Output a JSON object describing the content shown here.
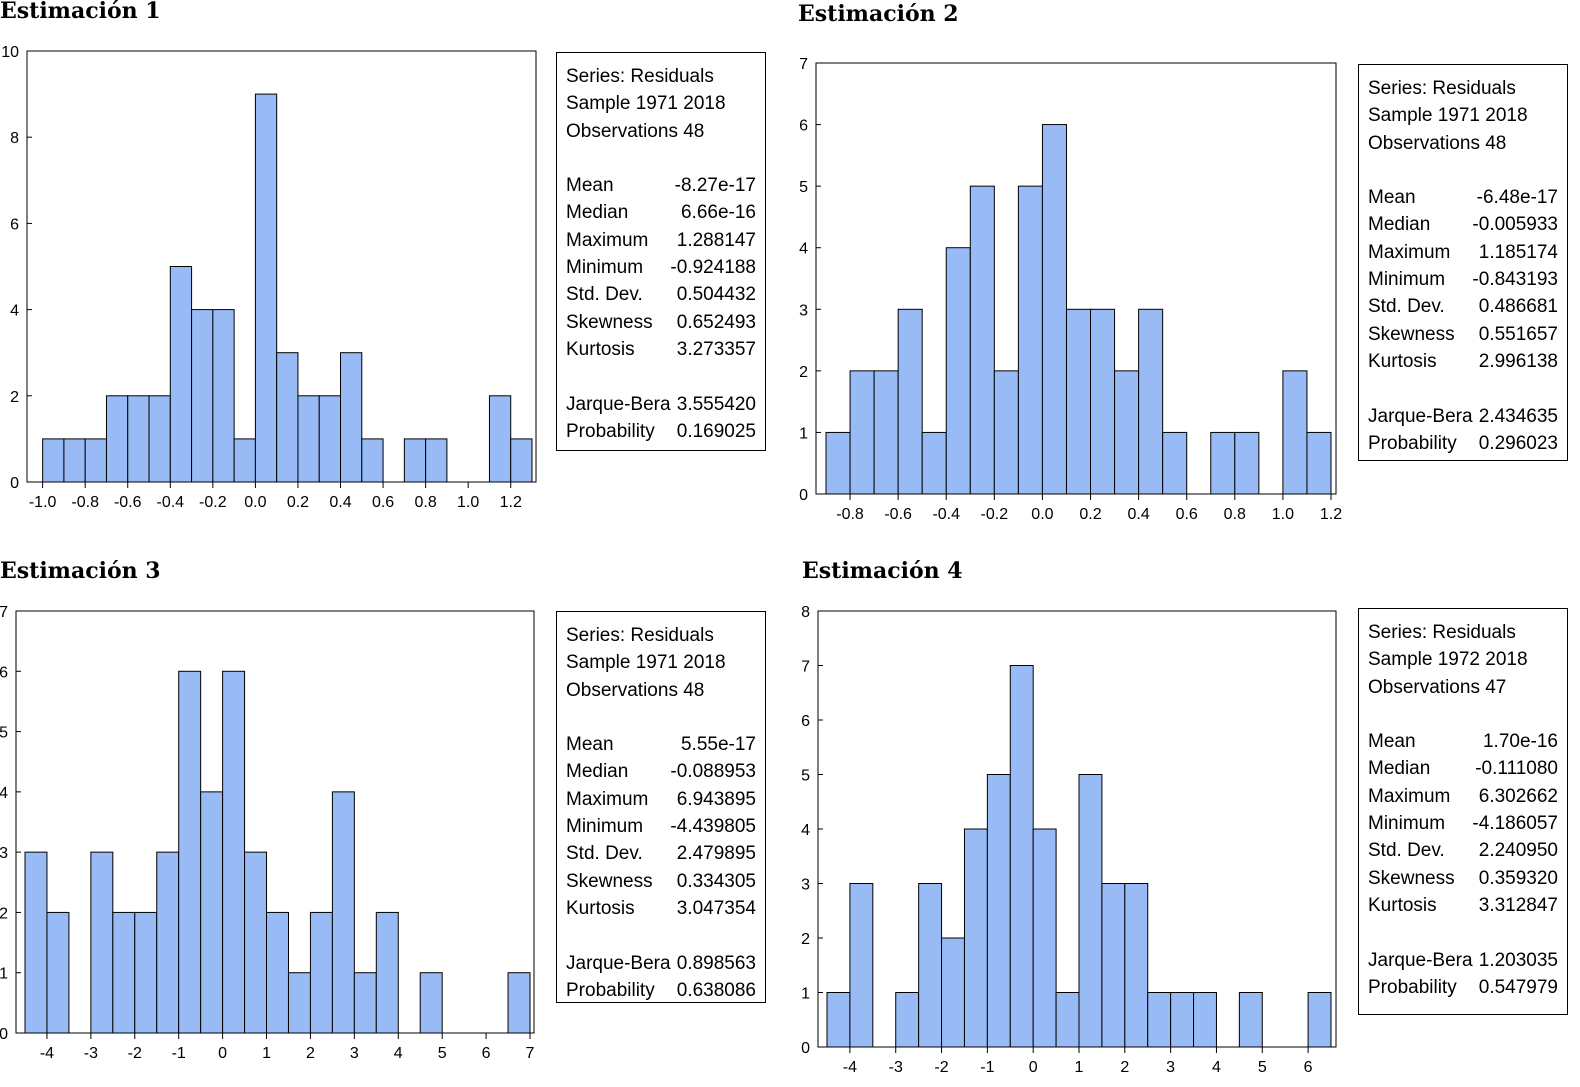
{
  "panels": [
    {
      "title": "Estimación 1",
      "stats": {
        "series": "Series: Residuals",
        "sample": "Sample 1971 2018",
        "observations": "Observations 48",
        "rows1": [
          {
            "label": "Mean",
            "value": "-8.27e-17"
          },
          {
            "label": "Median",
            "value": "6.66e-16"
          },
          {
            "label": "Maximum",
            "value": "1.288147"
          },
          {
            "label": "Minimum",
            "value": "-0.924188"
          },
          {
            "label": "Std. Dev.",
            "value": "0.504432"
          },
          {
            "label": "Skewness",
            "value": "0.652493"
          },
          {
            "label": "Kurtosis",
            "value": "3.273357"
          }
        ],
        "rows2": [
          {
            "label": "Jarque-Bera",
            "value": "3.555420"
          },
          {
            "label": "Probability",
            "value": "0.169025"
          }
        ]
      }
    },
    {
      "title": "Estimación 2",
      "stats": {
        "series": "Series: Residuals",
        "sample": "Sample 1971 2018",
        "observations": "Observations 48",
        "rows1": [
          {
            "label": "Mean",
            "value": "-6.48e-17"
          },
          {
            "label": "Median",
            "value": "-0.005933"
          },
          {
            "label": "Maximum",
            "value": "1.185174"
          },
          {
            "label": "Minimum",
            "value": "-0.843193"
          },
          {
            "label": "Std. Dev.",
            "value": "0.486681"
          },
          {
            "label": "Skewness",
            "value": "0.551657"
          },
          {
            "label": "Kurtosis",
            "value": "2.996138"
          }
        ],
        "rows2": [
          {
            "label": "Jarque-Bera",
            "value": "2.434635"
          },
          {
            "label": "Probability",
            "value": "0.296023"
          }
        ]
      }
    },
    {
      "title": "Estimación 3",
      "stats": {
        "series": "Series: Residuals",
        "sample": "Sample 1971 2018",
        "observations": "Observations 48",
        "rows1": [
          {
            "label": "Mean",
            "value": "5.55e-17"
          },
          {
            "label": "Median",
            "value": "-0.088953"
          },
          {
            "label": "Maximum",
            "value": "6.943895"
          },
          {
            "label": "Minimum",
            "value": "-4.439805"
          },
          {
            "label": "Std. Dev.",
            "value": "2.479895"
          },
          {
            "label": "Skewness",
            "value": "0.334305"
          },
          {
            "label": "Kurtosis",
            "value": "3.047354"
          }
        ],
        "rows2": [
          {
            "label": "Jarque-Bera",
            "value": "0.898563"
          },
          {
            "label": "Probability",
            "value": "0.638086"
          }
        ]
      }
    },
    {
      "title": "Estimación 4",
      "stats": {
        "series": "Series: Residuals",
        "sample": "Sample 1972 2018",
        "observations": "Observations 47",
        "rows1": [
          {
            "label": "Mean",
            "value": "1.70e-16"
          },
          {
            "label": "Median",
            "value": "-0.111080"
          },
          {
            "label": "Maximum",
            "value": "6.302662"
          },
          {
            "label": "Minimum",
            "value": "-4.186057"
          },
          {
            "label": "Std. Dev.",
            "value": "2.240950"
          },
          {
            "label": "Skewness",
            "value": "0.359320"
          },
          {
            "label": "Kurtosis",
            "value": "3.312847"
          }
        ],
        "rows2": [
          {
            "label": "Jarque-Bera",
            "value": "1.203035"
          },
          {
            "label": "Probability",
            "value": "0.547979"
          }
        ]
      }
    }
  ],
  "chart_data": [
    {
      "type": "bar",
      "bar_color": "#99bbf5",
      "edge_color": "#000000",
      "grid": false,
      "xlim": [
        -1.05,
        1.3
      ],
      "ylim": [
        0,
        10
      ],
      "xticks": [
        -1.0,
        -0.8,
        -0.6,
        -0.4,
        -0.2,
        0.0,
        0.2,
        0.4,
        0.6,
        0.8,
        1.0,
        1.2
      ],
      "xtick_labels": [
        "-1.0",
        "-0.8",
        "-0.6",
        "-0.4",
        "-0.2",
        "0.0",
        "0.2",
        "0.4",
        "0.6",
        "0.8",
        "1.0",
        "1.2"
      ],
      "yticks": [
        0,
        2,
        4,
        6,
        8,
        10
      ],
      "bin_start": -1.0,
      "bin_width": 0.1,
      "counts": [
        1,
        1,
        1,
        2,
        2,
        2,
        5,
        4,
        4,
        1,
        9,
        3,
        2,
        2,
        3,
        1,
        0,
        1,
        1,
        0,
        0,
        2,
        1
      ]
    },
    {
      "type": "bar",
      "bar_color": "#99bbf5",
      "edge_color": "#000000",
      "grid": false,
      "xlim": [
        -0.9,
        1.2
      ],
      "ylim": [
        0,
        7
      ],
      "xticks": [
        -0.8,
        -0.6,
        -0.4,
        -0.2,
        0.0,
        0.2,
        0.4,
        0.6,
        0.8,
        1.0,
        1.2
      ],
      "xtick_labels": [
        "-0.8",
        "-0.6",
        "-0.4",
        "-0.2",
        "0.0",
        "0.2",
        "0.4",
        "0.6",
        "0.8",
        "1.0",
        "1.2"
      ],
      "yticks": [
        0,
        1,
        2,
        3,
        4,
        5,
        6,
        7
      ],
      "bin_start": -0.9,
      "bin_width": 0.1,
      "counts": [
        1,
        2,
        2,
        3,
        1,
        4,
        5,
        2,
        5,
        6,
        3,
        3,
        2,
        3,
        1,
        0,
        1,
        1,
        0,
        2,
        1
      ]
    },
    {
      "type": "bar",
      "bar_color": "#99bbf5",
      "edge_color": "#000000",
      "grid": false,
      "xlim": [
        -4.5,
        7.0
      ],
      "ylim": [
        0,
        7
      ],
      "xticks": [
        -4,
        -3,
        -2,
        -1,
        0,
        1,
        2,
        3,
        4,
        5,
        6,
        7
      ],
      "xtick_labels": [
        "-4",
        "-3",
        "-2",
        "-1",
        "0",
        "1",
        "2",
        "3",
        "4",
        "5",
        "6",
        "7"
      ],
      "yticks": [
        0,
        1,
        2,
        3,
        4,
        5,
        6,
        7
      ],
      "bin_start": -4.5,
      "bin_width": 0.5,
      "counts": [
        3,
        2,
        0,
        3,
        2,
        2,
        3,
        6,
        4,
        6,
        3,
        2,
        1,
        2,
        4,
        1,
        2,
        0,
        1,
        0,
        0,
        0,
        1
      ]
    },
    {
      "type": "bar",
      "bar_color": "#99bbf5",
      "edge_color": "#000000",
      "grid": false,
      "xlim": [
        -4.5,
        6.5
      ],
      "ylim": [
        0,
        8
      ],
      "xticks": [
        -4,
        -3,
        -2,
        -1,
        0,
        1,
        2,
        3,
        4,
        5,
        6
      ],
      "xtick_labels": [
        "-4",
        "-3",
        "-2",
        "-1",
        "0",
        "1",
        "2",
        "3",
        "4",
        "5",
        "6"
      ],
      "yticks": [
        0,
        1,
        2,
        3,
        4,
        5,
        6,
        7,
        8
      ],
      "bin_start": -4.5,
      "bin_width": 0.5,
      "counts": [
        1,
        3,
        0,
        1,
        3,
        2,
        4,
        5,
        7,
        4,
        1,
        5,
        3,
        3,
        1,
        1,
        1,
        0,
        1,
        0,
        0,
        1
      ]
    }
  ]
}
